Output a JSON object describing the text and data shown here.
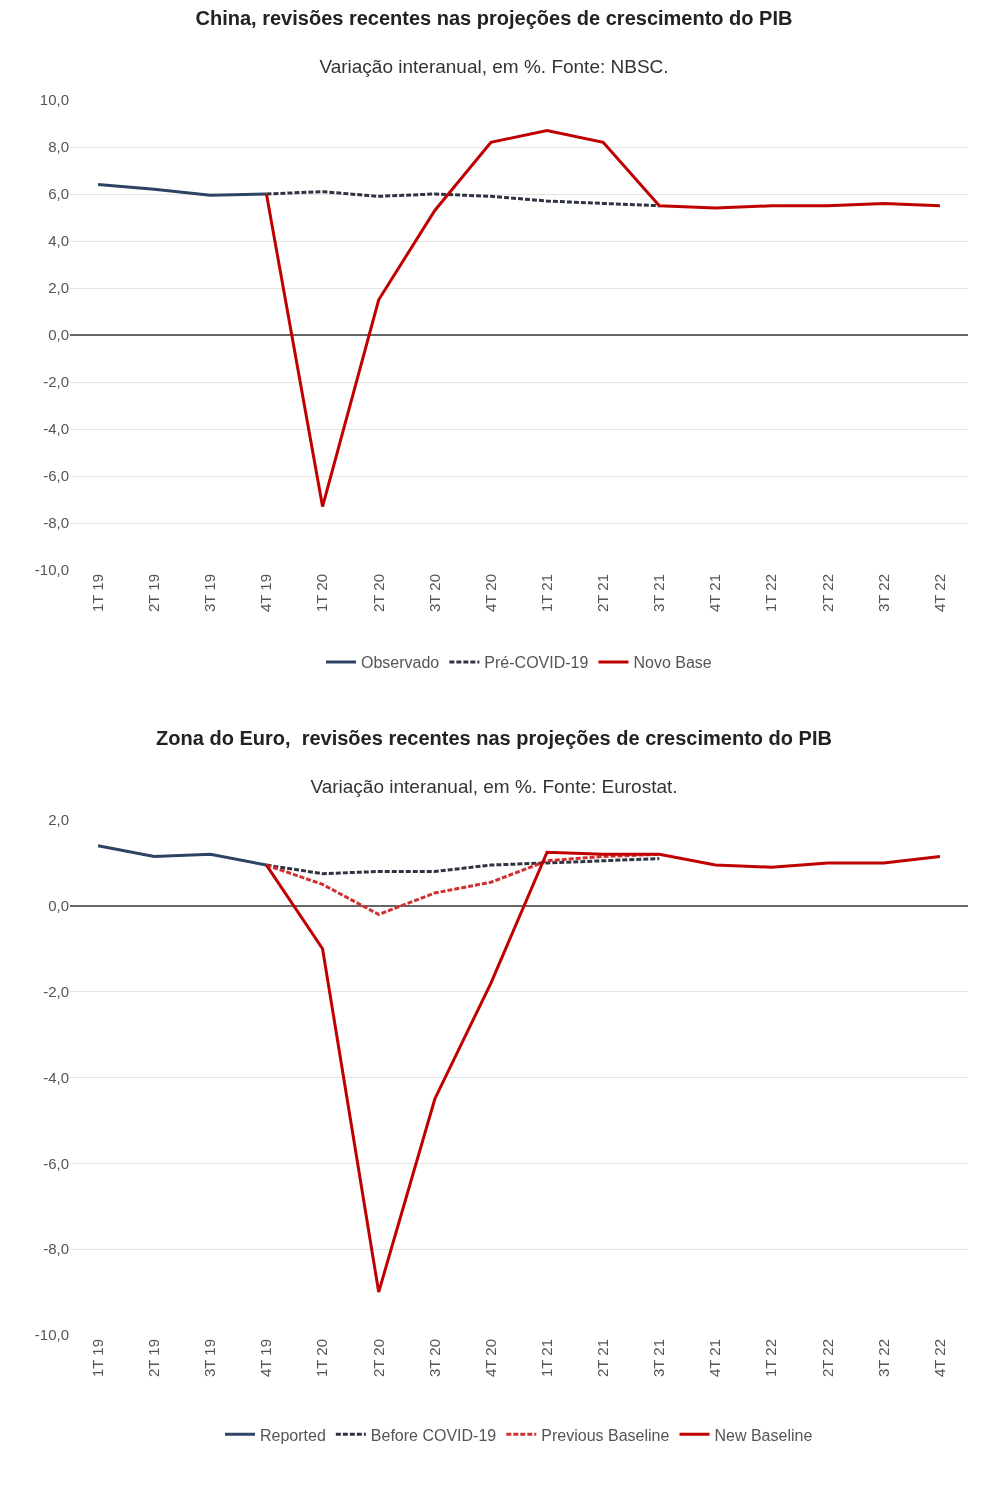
{
  "chart_data": [
    {
      "type": "line",
      "title": "China, revisões recentes nas projeções de crescimento do PIB",
      "subtitle": "Variação interanual, em %. Fonte: NBSC.",
      "categories": [
        "1T 19",
        "2T 19",
        "3T 19",
        "4T 19",
        "1T 20",
        "2T 20",
        "3T 20",
        "4T 20",
        "1T 21",
        "2T 21",
        "3T 21",
        "4T 21",
        "1T 22",
        "2T 22",
        "3T 22",
        "4T 22"
      ],
      "series": [
        {
          "name": "Observado",
          "color": "#2e4264",
          "line_style": "solid",
          "values": [
            6.4,
            6.2,
            5.95,
            6.0,
            null,
            null,
            null,
            null,
            null,
            null,
            null,
            null,
            null,
            null,
            null,
            null
          ]
        },
        {
          "name": "Pré-COVID-19",
          "color": "#2e3440",
          "line_style": "dashed",
          "values": [
            null,
            null,
            null,
            6.0,
            6.1,
            5.9,
            6.0,
            5.9,
            5.7,
            5.6,
            5.5,
            null,
            null,
            null,
            null,
            null
          ]
        },
        {
          "name": "Novo Base",
          "color": "#c00000",
          "line_style": "solid",
          "values": [
            null,
            null,
            null,
            6.0,
            -7.3,
            1.5,
            5.3,
            8.2,
            8.7,
            8.2,
            5.5,
            5.4,
            5.5,
            5.5,
            5.6,
            5.5
          ]
        }
      ],
      "ylim": [
        -10,
        10
      ],
      "yticks": [
        {
          "value": -10,
          "label": "-10,0"
        },
        {
          "value": -8,
          "label": "-8,0"
        },
        {
          "value": -6,
          "label": "-6,0"
        },
        {
          "value": -4,
          "label": "-4,0"
        },
        {
          "value": -2,
          "label": "-2,0"
        },
        {
          "value": 0,
          "label": "0,0"
        },
        {
          "value": 2,
          "label": "2,0"
        },
        {
          "value": 4,
          "label": "4,0"
        },
        {
          "value": 6,
          "label": "6,0"
        },
        {
          "value": 8,
          "label": "8,0"
        },
        {
          "value": 10,
          "label": "10,0"
        }
      ],
      "grid": "y",
      "legend": "bottom",
      "marker": "none"
    },
    {
      "type": "line",
      "title": "Zona do Euro,  revisões recentes nas projeções de crescimento do PIB",
      "subtitle": "Variação interanual, em %. Fonte: Eurostat.",
      "categories": [
        "1T 19",
        "2T 19",
        "3T 19",
        "4T 19",
        "1T 20",
        "2T 20",
        "3T 20",
        "4T 20",
        "1T 21",
        "2T 21",
        "3T 21",
        "4T 21",
        "1T 22",
        "2T 22",
        "3T 22",
        "4T 22"
      ],
      "series": [
        {
          "name": "Reported",
          "color": "#2e4264",
          "line_style": "solid",
          "values": [
            1.4,
            1.15,
            1.2,
            0.95,
            null,
            null,
            null,
            null,
            null,
            null,
            null,
            null,
            null,
            null,
            null,
            null
          ]
        },
        {
          "name": "Before COVID-19",
          "color": "#2e3440",
          "line_style": "dashed",
          "values": [
            null,
            null,
            null,
            0.95,
            0.75,
            0.8,
            0.8,
            0.95,
            1.0,
            1.05,
            1.1,
            null,
            null,
            null,
            null,
            null
          ]
        },
        {
          "name": "Previous Baseline",
          "color": "#d03030",
          "line_style": "dashed",
          "values": [
            null,
            null,
            null,
            0.95,
            0.5,
            -0.2,
            0.3,
            0.55,
            1.05,
            1.15,
            1.2,
            null,
            null,
            null,
            null,
            null
          ]
        },
        {
          "name": "New Baseline",
          "color": "#c00000",
          "line_style": "solid",
          "values": [
            null,
            null,
            null,
            0.95,
            -1.0,
            -9.0,
            -4.5,
            -1.8,
            1.25,
            1.2,
            1.2,
            0.95,
            0.9,
            1.0,
            1.0,
            1.15
          ]
        }
      ],
      "ylim": [
        -10,
        2
      ],
      "yticks": [
        {
          "value": -10,
          "label": "-10,0"
        },
        {
          "value": -8,
          "label": "-8,0"
        },
        {
          "value": -6,
          "label": "-6,0"
        },
        {
          "value": -4,
          "label": "-4,0"
        },
        {
          "value": -2,
          "label": "-2,0"
        },
        {
          "value": 0,
          "label": "0,0"
        },
        {
          "value": 2,
          "label": "2,0"
        }
      ],
      "grid": "y",
      "legend": "bottom",
      "marker": "none"
    }
  ]
}
